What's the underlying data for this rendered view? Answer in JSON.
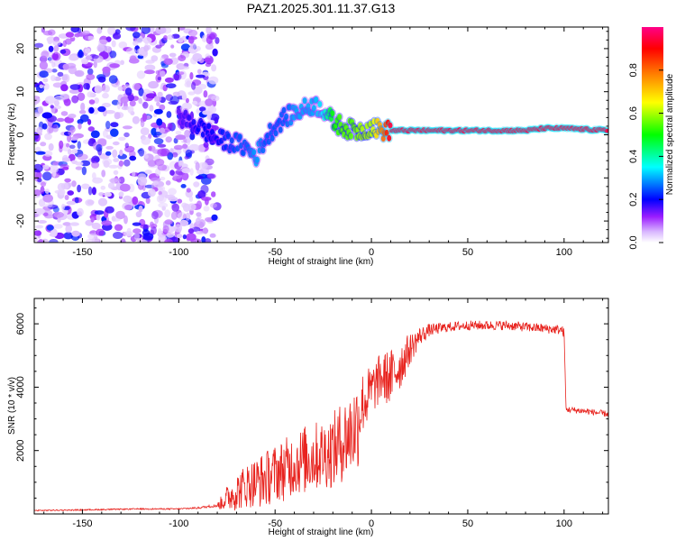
{
  "title": "PAZ1.2025.301.11.37.G13",
  "colors": {
    "snr_line": "#e8241f",
    "frame": "#000000",
    "track_red": "#e8241f"
  },
  "chart_data": [
    {
      "type": "heatmap",
      "name": "spectrogram",
      "xlabel": "Height of straight line (km)",
      "ylabel": "Frequency (Hz)",
      "xlim": [
        -175,
        123
      ],
      "ylim": [
        -25,
        25
      ],
      "xticks": [
        -150,
        -100,
        -50,
        0,
        50,
        100
      ],
      "yticks": [
        -20,
        -10,
        0,
        10,
        20
      ],
      "colorbar": {
        "label": "Normalized spectral amplitude",
        "range": [
          0,
          1
        ],
        "ticks": [
          "0.0",
          "0.2",
          "0.4",
          "0.6",
          "0.8"
        ],
        "stops": [
          "#ffffff",
          "#9b1dff",
          "#0000ff",
          "#00ffff",
          "#00ff00",
          "#ffff00",
          "#ff8000",
          "#ff0000",
          "#ff0088"
        ]
      },
      "noise_region_km": [
        -175,
        -80
      ],
      "signal_track": {
        "km": [
          -100,
          -90,
          -80,
          -70,
          -65,
          -60,
          -55,
          -50,
          -45,
          -40,
          -35,
          -30,
          -25,
          -20,
          -15,
          -10,
          -5,
          0,
          5,
          10,
          20,
          30,
          50,
          80,
          90,
          100,
          123
        ],
        "freq_hz": [
          4,
          2,
          -1,
          -2,
          -3,
          -5,
          -1,
          2,
          4,
          5,
          6,
          7,
          6,
          3,
          2,
          1,
          1,
          2,
          1,
          1,
          1,
          1,
          1,
          1,
          1.5,
          1.5,
          1
        ],
        "amplitude": [
          0.15,
          0.2,
          0.2,
          0.25,
          0.25,
          0.3,
          0.25,
          0.25,
          0.25,
          0.3,
          0.3,
          0.3,
          0.35,
          0.5,
          0.55,
          0.55,
          0.6,
          0.6,
          0.75,
          0.95,
          0.95,
          0.95,
          0.95,
          0.95,
          0.95,
          0.95,
          0.95
        ]
      }
    },
    {
      "type": "line",
      "name": "snr",
      "xlabel": "Height of straight line (km)",
      "ylabel": "SNR (10 * v/v)",
      "xlim": [
        -175,
        123
      ],
      "ylim": [
        0,
        6800
      ],
      "xticks": [
        -150,
        -100,
        -50,
        0,
        50,
        100
      ],
      "yticks": [
        2000,
        4000,
        6000
      ],
      "series": [
        {
          "name": "SNR",
          "x": [
            -175,
            -150,
            -120,
            -100,
            -90,
            -80,
            -75,
            -70,
            -65,
            -60,
            -55,
            -50,
            -45,
            -40,
            -35,
            -30,
            -25,
            -20,
            -15,
            -10,
            -7,
            -5,
            -3,
            0,
            5,
            10,
            15,
            20,
            25,
            30,
            40,
            50,
            60,
            70,
            80,
            90,
            99,
            100,
            101,
            110,
            123
          ],
          "y": [
            100,
            120,
            150,
            150,
            180,
            250,
            500,
            700,
            900,
            1000,
            1100,
            1300,
            1400,
            1600,
            1700,
            1800,
            1900,
            2000,
            2300,
            2600,
            2900,
            3500,
            3600,
            3900,
            4300,
            4300,
            4700,
            5200,
            5600,
            5800,
            5900,
            5950,
            5950,
            5950,
            5900,
            5850,
            5800,
            5700,
            3300,
            3250,
            3150
          ],
          "noise": [
            40,
            40,
            40,
            40,
            60,
            100,
            400,
            600,
            700,
            800,
            900,
            900,
            1000,
            1000,
            1100,
            1100,
            1100,
            1200,
            1300,
            1400,
            1500,
            1000,
            1000,
            800,
            800,
            900,
            800,
            500,
            300,
            200,
            150,
            150,
            150,
            150,
            150,
            150,
            150,
            150,
            100,
            100,
            100
          ]
        }
      ]
    }
  ]
}
